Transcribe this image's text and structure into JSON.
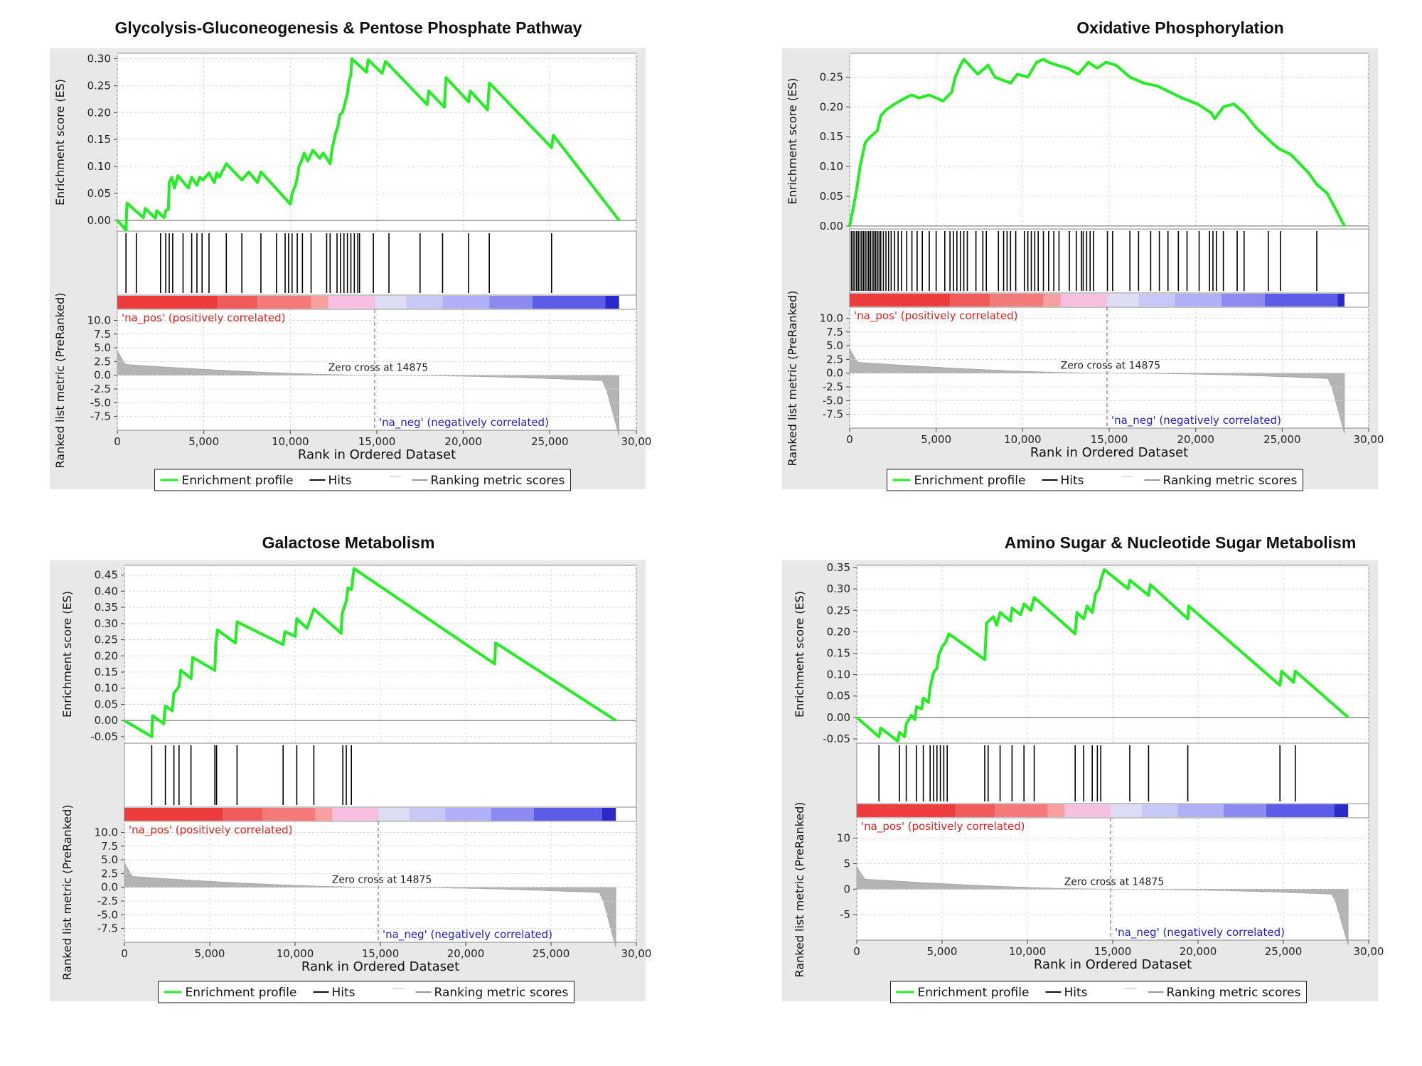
{
  "colors": {
    "frame_bg": "#e8e8e8",
    "plot_bg": "#ffffff",
    "grid": "#d8d8d8",
    "enrichment": "#22ee22",
    "hits": "#000000",
    "ranking": "#b4b4b4",
    "pos_label": "#e02020",
    "neg_label": "#2020c8",
    "heat": [
      "#ee3b3b",
      "#f05a5a",
      "#f47a7a",
      "#f7a0a0",
      "#f8c0e0",
      "#dcdcf4",
      "#c8c8f4",
      "#b0b0f8",
      "#8a8af0",
      "#5c5ce8",
      "#2a2ac8"
    ]
  },
  "chart_data": [
    {
      "type": "line",
      "title": "Glycolysis-Gluconeogenesis & Pentose Phosphate Pathway",
      "es_axis_label": "Enrichment score (ES)",
      "metric_axis_label": "Ranked list metric (PreRanked)",
      "xlabel": "Rank in Ordered Dataset",
      "xlim": [
        0,
        30000
      ],
      "x_ticks": [
        "0",
        "5,000",
        "10,000",
        "15,000",
        "20,000",
        "25,000",
        "30,00"
      ],
      "es_ylim": [
        -0.02,
        0.31
      ],
      "es_ticks": [
        "0.00",
        "0.05",
        "0.10",
        "0.15",
        "0.20",
        "0.25",
        "0.30"
      ],
      "metric_ylim": [
        -10,
        12
      ],
      "metric_ticks": [
        "10.0",
        "7.5",
        "5.0",
        "2.5",
        "0.0",
        "-2.5",
        "-5.0",
        "-7.5"
      ],
      "es_curve": [
        [
          0,
          0
        ],
        [
          500,
          -0.018
        ],
        [
          560,
          0.032
        ],
        [
          1500,
          0.005
        ],
        [
          1620,
          0.022
        ],
        [
          2200,
          0.004
        ],
        [
          2280,
          0.018
        ],
        [
          2700,
          0.005
        ],
        [
          2800,
          0.018
        ],
        [
          2950,
          0.02
        ],
        [
          3000,
          0.07
        ],
        [
          3150,
          0.08
        ],
        [
          3300,
          0.06
        ],
        [
          3500,
          0.083
        ],
        [
          4100,
          0.06
        ],
        [
          4300,
          0.08
        ],
        [
          4600,
          0.065
        ],
        [
          4750,
          0.08
        ],
        [
          4950,
          0.075
        ],
        [
          5300,
          0.088
        ],
        [
          5600,
          0.07
        ],
        [
          5750,
          0.088
        ],
        [
          5900,
          0.08
        ],
        [
          6100,
          0.093
        ],
        [
          6300,
          0.105
        ],
        [
          7200,
          0.075
        ],
        [
          7600,
          0.09
        ],
        [
          8100,
          0.07
        ],
        [
          8300,
          0.09
        ],
        [
          10000,
          0.03
        ],
        [
          10100,
          0.05
        ],
        [
          10300,
          0.065
        ],
        [
          10400,
          0.08
        ],
        [
          10500,
          0.1
        ],
        [
          10700,
          0.115
        ],
        [
          10800,
          0.125
        ],
        [
          11000,
          0.11
        ],
        [
          11300,
          0.13
        ],
        [
          11700,
          0.115
        ],
        [
          11900,
          0.125
        ],
        [
          12300,
          0.105
        ],
        [
          12400,
          0.13
        ],
        [
          12600,
          0.16
        ],
        [
          12750,
          0.175
        ],
        [
          12850,
          0.195
        ],
        [
          13000,
          0.2
        ],
        [
          13100,
          0.21
        ],
        [
          13300,
          0.235
        ],
        [
          13400,
          0.26
        ],
        [
          13500,
          0.27
        ],
        [
          13550,
          0.3
        ],
        [
          14400,
          0.275
        ],
        [
          14500,
          0.298
        ],
        [
          15300,
          0.273
        ],
        [
          15500,
          0.295
        ],
        [
          17900,
          0.215
        ],
        [
          18000,
          0.24
        ],
        [
          18900,
          0.21
        ],
        [
          19000,
          0.265
        ],
        [
          20300,
          0.22
        ],
        [
          20400,
          0.24
        ],
        [
          21400,
          0.205
        ],
        [
          21500,
          0.255
        ],
        [
          25100,
          0.135
        ],
        [
          25200,
          0.158
        ],
        [
          29000,
          0
        ]
      ],
      "hits": [
        500,
        1100,
        2500,
        2800,
        3000,
        3200,
        3800,
        4300,
        4600,
        4900,
        5300,
        6300,
        7200,
        8300,
        9200,
        9700,
        9900,
        10100,
        10400,
        10700,
        11200,
        12100,
        12300,
        12700,
        12900,
        13100,
        13300,
        13500,
        13700,
        13900,
        14000,
        14800,
        15700,
        17500,
        18800,
        20300,
        21500,
        25100
      ],
      "heat_stops": [
        5800,
        8100,
        11200,
        12200,
        14900,
        16700,
        18800,
        21500,
        24000,
        28200,
        29000
      ],
      "zero_cross": 14875,
      "zero_cross_label": "Zero cross at 14875",
      "pos_label": "'na_pos' (positively correlated)",
      "neg_label": "'na_neg' (negatively correlated)",
      "legend": [
        "Enrichment profile",
        "Hits",
        "Ranking metric scores"
      ]
    },
    {
      "type": "line",
      "title": "Oxidative Phosphorylation",
      "es_axis_label": "Enrichment score (ES)",
      "metric_axis_label": "Ranked list metric (PreRanked)",
      "xlabel": "Rank in Ordered Dataset",
      "xlim": [
        0,
        30000
      ],
      "x_ticks": [
        "0",
        "5,000",
        "10,000",
        "15,000",
        "20,000",
        "25,000",
        "30,00"
      ],
      "es_ylim": [
        -0.005,
        0.29
      ],
      "es_ticks": [
        "0.00",
        "0.05",
        "0.10",
        "0.15",
        "0.20",
        "0.25"
      ],
      "metric_ylim": [
        -10,
        12
      ],
      "metric_ticks": [
        "10.0",
        "7.5",
        "5.0",
        "2.5",
        "0.0",
        "-2.5",
        "-5.0",
        "-7.5"
      ],
      "es_curve": [
        [
          0,
          0
        ],
        [
          200,
          0.03
        ],
        [
          400,
          0.06
        ],
        [
          600,
          0.1
        ],
        [
          900,
          0.14
        ],
        [
          1200,
          0.15
        ],
        [
          1600,
          0.16
        ],
        [
          1800,
          0.185
        ],
        [
          2100,
          0.195
        ],
        [
          2600,
          0.205
        ],
        [
          3200,
          0.215
        ],
        [
          3600,
          0.22
        ],
        [
          4000,
          0.215
        ],
        [
          4600,
          0.22
        ],
        [
          5000,
          0.215
        ],
        [
          5400,
          0.21
        ],
        [
          5900,
          0.225
        ],
        [
          6100,
          0.25
        ],
        [
          6400,
          0.27
        ],
        [
          6600,
          0.28
        ],
        [
          7400,
          0.255
        ],
        [
          8000,
          0.27
        ],
        [
          8400,
          0.25
        ],
        [
          9300,
          0.24
        ],
        [
          9700,
          0.255
        ],
        [
          10300,
          0.25
        ],
        [
          10800,
          0.275
        ],
        [
          11200,
          0.28
        ],
        [
          11500,
          0.275
        ],
        [
          12000,
          0.27
        ],
        [
          12600,
          0.265
        ],
        [
          13200,
          0.255
        ],
        [
          13800,
          0.275
        ],
        [
          14300,
          0.265
        ],
        [
          14800,
          0.275
        ],
        [
          15400,
          0.27
        ],
        [
          16200,
          0.25
        ],
        [
          17000,
          0.24
        ],
        [
          17800,
          0.235
        ],
        [
          18500,
          0.225
        ],
        [
          19200,
          0.215
        ],
        [
          20100,
          0.205
        ],
        [
          20900,
          0.19
        ],
        [
          21100,
          0.18
        ],
        [
          21600,
          0.2
        ],
        [
          22200,
          0.205
        ],
        [
          22800,
          0.19
        ],
        [
          23500,
          0.165
        ],
        [
          24400,
          0.14
        ],
        [
          24800,
          0.13
        ],
        [
          25500,
          0.12
        ],
        [
          26500,
          0.09
        ],
        [
          27000,
          0.07
        ],
        [
          27600,
          0.055
        ],
        [
          28600,
          0
        ]
      ],
      "hits": [
        100,
        200,
        300,
        400,
        500,
        600,
        700,
        800,
        900,
        1000,
        1100,
        1200,
        1300,
        1400,
        1500,
        1600,
        1700,
        1800,
        1950,
        2100,
        2250,
        2400,
        2600,
        2800,
        3000,
        3300,
        3600,
        3900,
        4200,
        4600,
        5000,
        5500,
        5800,
        6000,
        6200,
        6400,
        6600,
        6800,
        7300,
        7700,
        7900,
        8600,
        8900,
        9100,
        9300,
        9600,
        10100,
        10300,
        10500,
        10700,
        10900,
        11200,
        11500,
        11800,
        12100,
        12700,
        13100,
        13400,
        13500,
        13700,
        13900,
        14100,
        14900,
        15200,
        16200,
        16700,
        17400,
        17900,
        18400,
        19000,
        19500,
        20200,
        20800,
        21000,
        21200,
        21600,
        22400,
        22800,
        24200,
        24900,
        27000
      ],
      "heat_stops": [
        5800,
        8100,
        11200,
        12200,
        14900,
        16700,
        18800,
        21500,
        24000,
        28200,
        28600
      ],
      "zero_cross": 14875,
      "zero_cross_label": "Zero cross at 14875",
      "pos_label": "'na_pos' (positively correlated)",
      "neg_label": "'na_neg' (negatively correlated)",
      "legend": [
        "Enrichment profile",
        "Hits",
        "Ranking metric scores"
      ]
    },
    {
      "type": "line",
      "title": "Galactose Metabolism",
      "es_axis_label": "Enrichment score (ES)",
      "metric_axis_label": "Ranked list metric (PreRanked)",
      "xlabel": "Rank in Ordered Dataset",
      "xlim": [
        0,
        30000
      ],
      "x_ticks": [
        "0",
        "5,000",
        "10,000",
        "15,000",
        "20,000",
        "25,000",
        "30,00"
      ],
      "es_ylim": [
        -0.07,
        0.48
      ],
      "es_ticks": [
        "0.45",
        "0.40",
        "0.35",
        "0.30",
        "0.25",
        "0.20",
        "0.15",
        "0.10",
        "0.05",
        "0.00",
        "-0.05"
      ],
      "metric_ylim": [
        -10,
        12
      ],
      "metric_ticks": [
        "10.0",
        "7.5",
        "5.0",
        "2.5",
        "0.0",
        "-2.5",
        "-5.0",
        "-7.5"
      ],
      "es_curve": [
        [
          0,
          0
        ],
        [
          1600,
          -0.05
        ],
        [
          1650,
          0.015
        ],
        [
          2300,
          -0.01
        ],
        [
          2400,
          0.045
        ],
        [
          2800,
          0.03
        ],
        [
          2900,
          0.085
        ],
        [
          3200,
          0.105
        ],
        [
          3300,
          0.155
        ],
        [
          3900,
          0.13
        ],
        [
          4000,
          0.195
        ],
        [
          5300,
          0.155
        ],
        [
          5350,
          0.235
        ],
        [
          5450,
          0.28
        ],
        [
          6500,
          0.24
        ],
        [
          6600,
          0.305
        ],
        [
          9300,
          0.235
        ],
        [
          9400,
          0.275
        ],
        [
          10000,
          0.26
        ],
        [
          10100,
          0.315
        ],
        [
          10700,
          0.285
        ],
        [
          11100,
          0.345
        ],
        [
          12700,
          0.27
        ],
        [
          12750,
          0.33
        ],
        [
          13000,
          0.37
        ],
        [
          13100,
          0.41
        ],
        [
          13300,
          0.405
        ],
        [
          13450,
          0.47
        ],
        [
          21700,
          0.175
        ],
        [
          21750,
          0.24
        ],
        [
          28800,
          0
        ]
      ],
      "hits": [
        1600,
        2400,
        2900,
        3200,
        3900,
        5300,
        5400,
        6600,
        9300,
        10100,
        11100,
        12800,
        13000,
        13300
      ],
      "heat_stops": [
        5800,
        8100,
        11200,
        12200,
        14900,
        16700,
        18800,
        21500,
        24000,
        28000,
        28800
      ],
      "zero_cross": 14875,
      "zero_cross_label": "Zero cross at 14875",
      "pos_label": "'na_pos' (positively correlated)",
      "neg_label": "'na_neg' (negatively correlated)",
      "legend": [
        "Enrichment profile",
        "Hits",
        "Ranking metric scores"
      ]
    },
    {
      "type": "line",
      "title": "Amino Sugar & Nucleotide Sugar Metabolism",
      "es_axis_label": "Enrichment score (ES)",
      "metric_axis_label": "Ranked list metric (PreRanked)",
      "xlabel": "Rank in Ordered Dataset",
      "xlim": [
        0,
        30000
      ],
      "x_ticks": [
        "0",
        "5,000",
        "10,000",
        "15,000",
        "20,000",
        "25,000",
        "30,00"
      ],
      "es_ylim": [
        -0.06,
        0.355
      ],
      "es_ticks": [
        "0.35",
        "0.30",
        "0.25",
        "0.20",
        "0.15",
        "0.10",
        "0.05",
        "0.00",
        "-0.05"
      ],
      "metric_ylim": [
        -10,
        14
      ],
      "metric_ticks": [
        "10",
        "5",
        "0",
        "-5"
      ],
      "es_curve": [
        [
          0,
          0
        ],
        [
          1300,
          -0.045
        ],
        [
          1400,
          -0.025
        ],
        [
          2400,
          -0.055
        ],
        [
          2500,
          -0.035
        ],
        [
          2800,
          -0.045
        ],
        [
          2900,
          -0.015
        ],
        [
          3200,
          0.005
        ],
        [
          3400,
          -0.005
        ],
        [
          3500,
          0.025
        ],
        [
          3800,
          0.02
        ],
        [
          3900,
          0.045
        ],
        [
          4200,
          0.035
        ],
        [
          4300,
          0.07
        ],
        [
          4500,
          0.105
        ],
        [
          4700,
          0.115
        ],
        [
          4800,
          0.145
        ],
        [
          5000,
          0.165
        ],
        [
          5200,
          0.175
        ],
        [
          5400,
          0.195
        ],
        [
          7500,
          0.135
        ],
        [
          7550,
          0.175
        ],
        [
          7600,
          0.22
        ],
        [
          8000,
          0.235
        ],
        [
          8200,
          0.215
        ],
        [
          8400,
          0.245
        ],
        [
          9000,
          0.225
        ],
        [
          9100,
          0.255
        ],
        [
          9600,
          0.24
        ],
        [
          9800,
          0.265
        ],
        [
          10200,
          0.25
        ],
        [
          10400,
          0.28
        ],
        [
          12800,
          0.195
        ],
        [
          12900,
          0.245
        ],
        [
          13300,
          0.23
        ],
        [
          13500,
          0.26
        ],
        [
          13800,
          0.245
        ],
        [
          14000,
          0.29
        ],
        [
          14200,
          0.3
        ],
        [
          14300,
          0.32
        ],
        [
          14500,
          0.345
        ],
        [
          15900,
          0.3
        ],
        [
          16000,
          0.32
        ],
        [
          17100,
          0.285
        ],
        [
          17200,
          0.31
        ],
        [
          19400,
          0.23
        ],
        [
          19450,
          0.26
        ],
        [
          24800,
          0.075
        ],
        [
          24900,
          0.108
        ],
        [
          25600,
          0.082
        ],
        [
          25700,
          0.108
        ],
        [
          28800,
          0
        ]
      ],
      "hits": [
        1300,
        2500,
        2900,
        3500,
        3900,
        4300,
        4500,
        4700,
        4900,
        5100,
        5300,
        7500,
        7700,
        8400,
        9100,
        9800,
        10400,
        12800,
        13300,
        13800,
        14100,
        14300,
        16000,
        17100,
        19400,
        24800,
        25700
      ],
      "heat_stops": [
        5800,
        8100,
        11200,
        12200,
        14900,
        16700,
        18800,
        21500,
        24000,
        28000,
        28800
      ],
      "zero_cross": 14875,
      "zero_cross_label": "Zero cross at 14875",
      "pos_label": "'na_pos' (positively correlated)",
      "neg_label": "'na_neg' (negatively correlated)",
      "legend": [
        "Enrichment profile",
        "Hits",
        "Ranking metric scores"
      ]
    }
  ]
}
